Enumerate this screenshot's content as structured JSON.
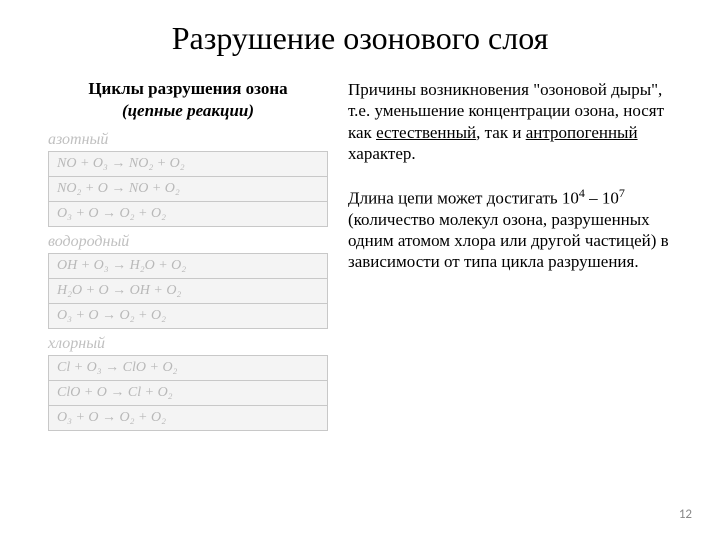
{
  "title": "Разрушение озонового слоя",
  "left": {
    "heading": "Циклы разрушения озона",
    "subheading": "(цепные реакции)",
    "cycles": [
      {
        "label": "азотный",
        "reactions": [
          "NO + O₃  → NO₂  + O₂",
          "NO₂ + O → NO  + O₂",
          "O₃ + O  → O₂ + O₂"
        ]
      },
      {
        "label": "водородный",
        "reactions": [
          "OH + O₃  → H₂O + O₂",
          "H₂O + O → OH   + O₂",
          "O₃ + O  → O₂ + O₂"
        ]
      },
      {
        "label": "хлорный",
        "reactions": [
          "Cl + O₃  → ClO + O₂",
          "ClO + O → Cl   + O₂",
          "O₃ + O  → O₂ + O₂"
        ]
      }
    ]
  },
  "right": {
    "p1_a": "Причины возникновения \"озоновой дыры\", т.е. уменьшение концентрации озона, носят как ",
    "p1_u1": "естественный",
    "p1_b": ", так и ",
    "p1_u2": "антропогенный",
    "p1_c": " характер.",
    "p2_a": "Длина цепи может достигать 10",
    "p2_s1": "4",
    "p2_b": " – 10",
    "p2_s2": "7",
    "p2_c": " (количество молекул озона, разрушенных одним атомом хлора или другой частицей) в зависимости от типа цикла разрушения."
  },
  "page_number": "12"
}
